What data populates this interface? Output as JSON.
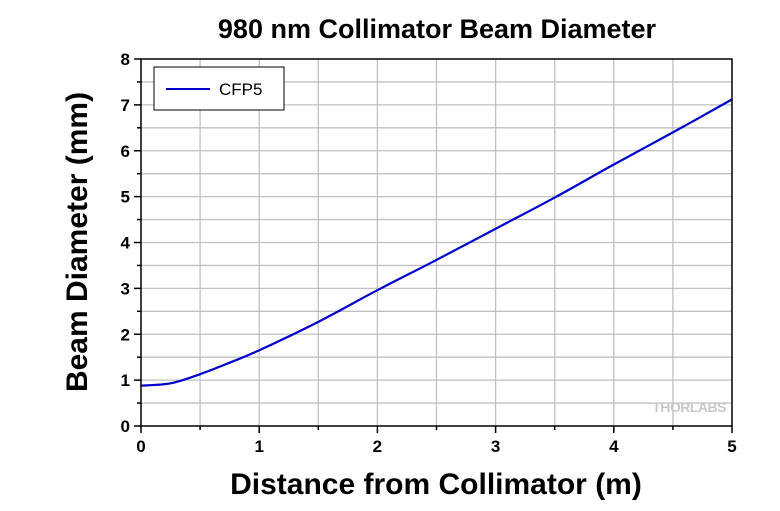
{
  "chart_data": {
    "type": "line",
    "title": "980 nm Collimator Beam Diameter",
    "xlabel": "Distance from Collimator (m)",
    "ylabel": "Beam Diameter (mm)",
    "xlim": [
      0,
      5
    ],
    "ylim": [
      0,
      8
    ],
    "xticks": [
      "0",
      "1",
      "2",
      "3",
      "4",
      "5"
    ],
    "yticks": [
      "0",
      "1",
      "2",
      "3",
      "4",
      "5",
      "6",
      "7",
      "8"
    ],
    "grid": true,
    "legend_position": "top-left",
    "watermark": "THORLABS",
    "series": [
      {
        "name": "CFP5",
        "color": "#0000cc",
        "x": [
          0,
          0.25,
          0.5,
          0.75,
          1.0,
          1.5,
          2.0,
          2.5,
          3.0,
          3.5,
          4.0,
          4.5,
          5.0
        ],
        "y": [
          0.88,
          0.93,
          1.13,
          1.38,
          1.65,
          2.27,
          2.96,
          3.62,
          4.3,
          4.98,
          5.7,
          6.4,
          7.12
        ]
      }
    ]
  }
}
